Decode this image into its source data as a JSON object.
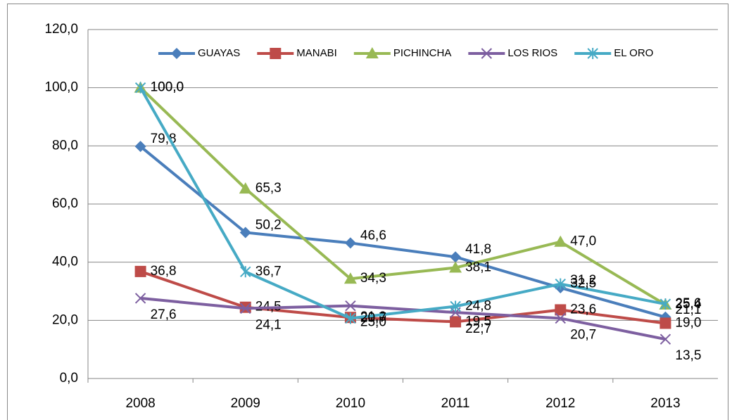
{
  "chart_data": {
    "type": "line",
    "categories": [
      "2008",
      "2009",
      "2010",
      "2011",
      "2012",
      "2013"
    ],
    "series": [
      {
        "name": "GUAYAS",
        "color": "#4a7ebb",
        "values": [
          79.8,
          50.2,
          46.6,
          41.8,
          31.2,
          21.1
        ],
        "value_labels": [
          "79,8",
          "50,2",
          "46,6",
          "41,8",
          "31,2",
          "21,1"
        ]
      },
      {
        "name": "MANABI",
        "color": "#be4b48",
        "values": [
          36.8,
          24.5,
          21.0,
          19.5,
          23.6,
          19.0
        ],
        "value_labels": [
          "36,8",
          "24,5",
          "21,0",
          "19,5",
          "23,6",
          "19,0"
        ]
      },
      {
        "name": "PICHINCHA",
        "color": "#98b954",
        "values": [
          100.0,
          65.3,
          34.3,
          38.1,
          47.0,
          25.4
        ],
        "value_labels": [
          "100,0",
          "65,3",
          "34,3",
          "38,1",
          "47,0",
          "25,4"
        ]
      },
      {
        "name": "LOS RIOS",
        "color": "#7d5fa0",
        "values": [
          27.6,
          24.1,
          25.0,
          22.7,
          20.7,
          13.5
        ],
        "value_labels": [
          "27,6",
          "24,1",
          "25,0",
          "22,7",
          "20,7",
          "13,5"
        ]
      },
      {
        "name": "EL ORO",
        "color": "#46aac5",
        "values": [
          100.0,
          36.7,
          20.7,
          24.8,
          32.5,
          25.6
        ],
        "value_labels": [
          "100,0",
          "36,7",
          "20,7",
          "24,8",
          "32,5",
          "25,6"
        ]
      }
    ],
    "ylim": [
      0,
      120
    ],
    "yticks": [
      {
        "value": 0,
        "label": "0,0"
      },
      {
        "value": 20,
        "label": "20,0"
      },
      {
        "value": 40,
        "label": "40,0"
      },
      {
        "value": 60,
        "label": "60,0"
      },
      {
        "value": 80,
        "label": "80,0"
      },
      {
        "value": 100,
        "label": "100,0"
      },
      {
        "value": 120,
        "label": "120,0"
      }
    ],
    "grid": true,
    "legend": "top"
  }
}
